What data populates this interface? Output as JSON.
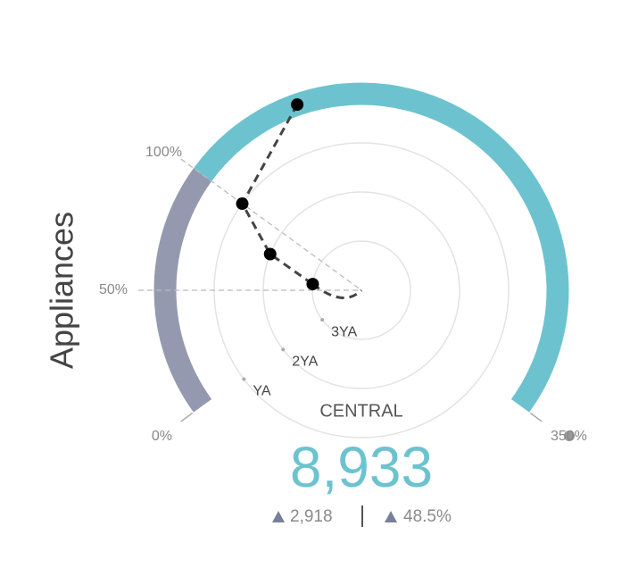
{
  "chart_data": {
    "type": "radial-gauge",
    "title": "Appliances",
    "region": "CENTRAL",
    "scale": [
      0,
      350
    ],
    "ticks": [
      {
        "value": 0,
        "label": "0%"
      },
      {
        "value": 50,
        "label": "50%",
        "guide": true
      },
      {
        "value": 100,
        "label": "100%",
        "guide": true
      },
      {
        "value": 350,
        "label": "350%"
      }
    ],
    "bands": [
      {
        "from": 0,
        "to": 100,
        "color": "#9599b0"
      },
      {
        "from": 100,
        "to": 350,
        "color": "#6cc3cf"
      }
    ],
    "categories": [
      null,
      "YA",
      "2YA",
      "3YA"
    ],
    "values": [
      148.5,
      100,
      80,
      60
    ],
    "line_color": "#444444",
    "point_color": "#000000",
    "kpi": {
      "value": 8933,
      "label": "8,933",
      "change": 2918,
      "change_label": "2,918",
      "change_pct": 48.5,
      "change_pct_label": "48.5%",
      "color": "#6cc3cf"
    }
  }
}
